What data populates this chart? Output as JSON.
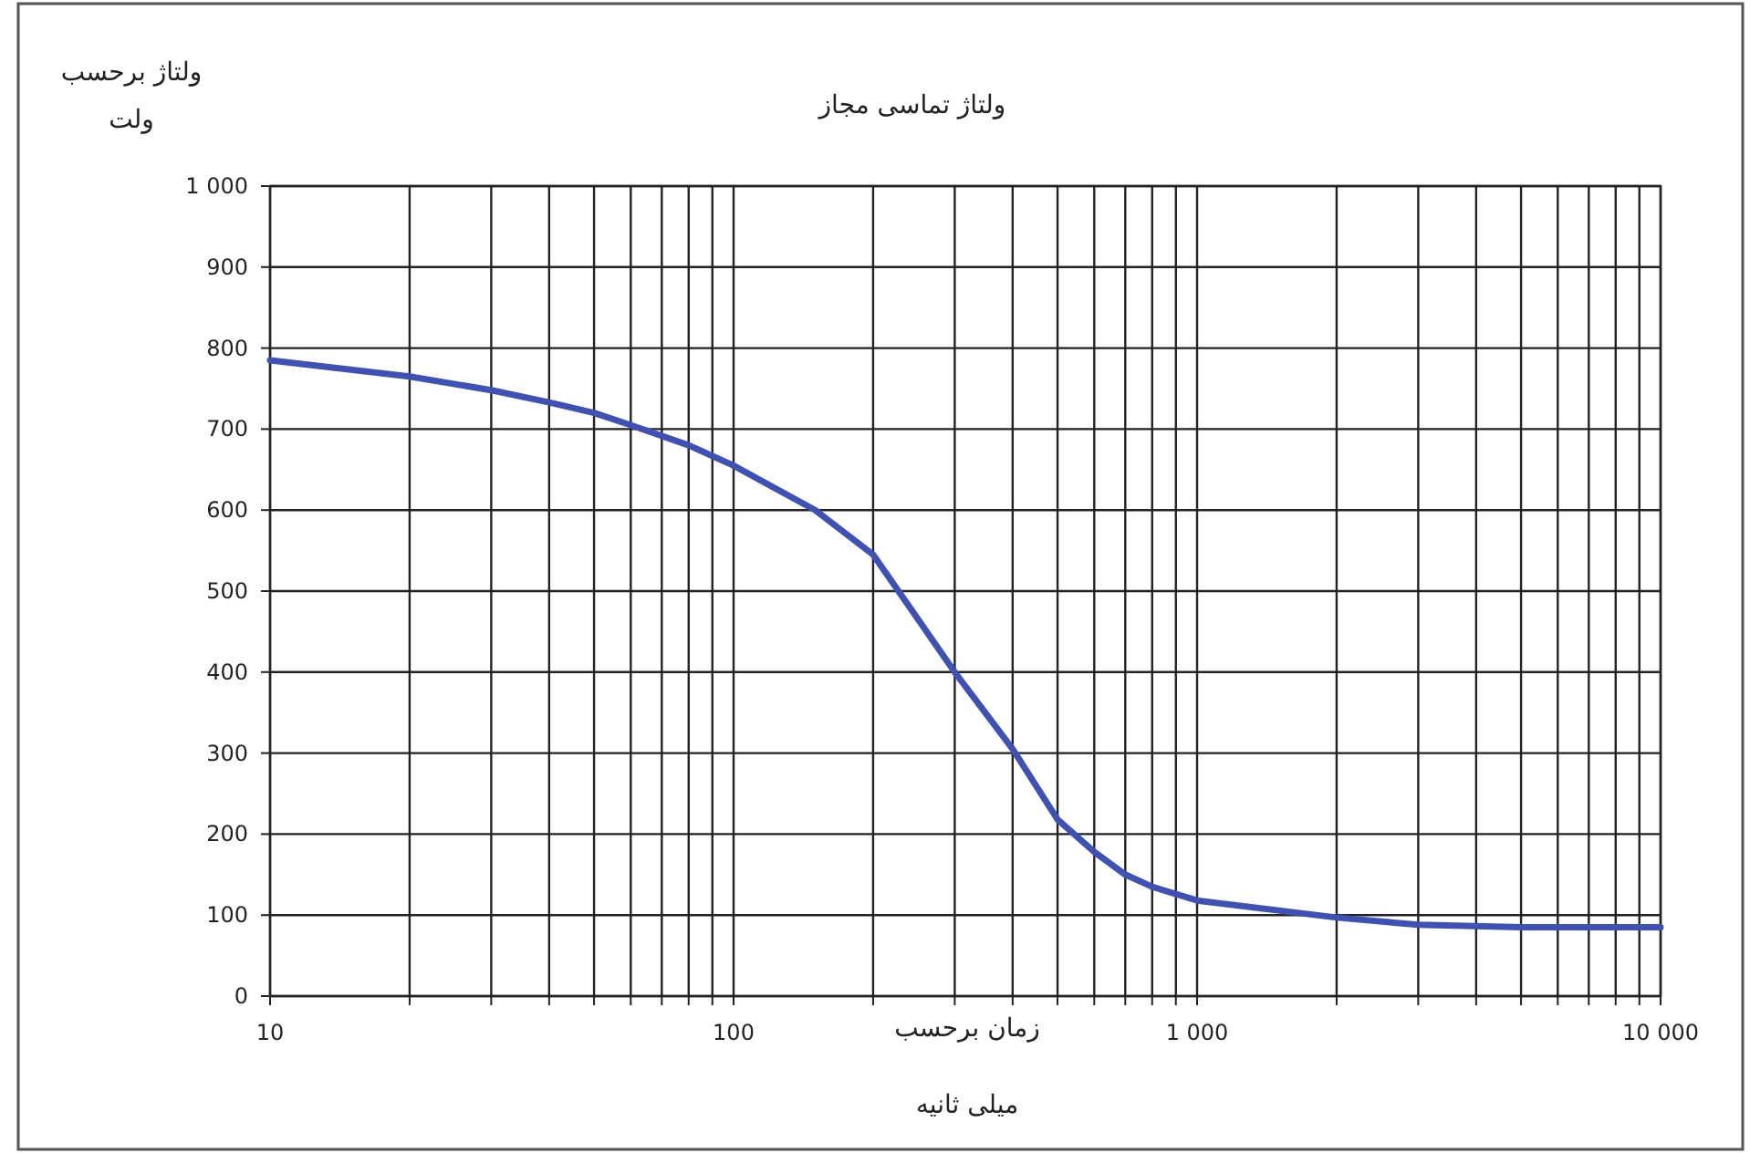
{
  "chart_data": {
    "type": "line",
    "title": "ولتاژ تماسی مجاز",
    "ylabel": "ولتاژ برحسب\nولت",
    "xlabel": "زمان برحسب\nمیلی ثانیه",
    "log": "x",
    "x": [
      10,
      20,
      30,
      40,
      50,
      60,
      80,
      100,
      150,
      200,
      300,
      400,
      500,
      600,
      700,
      800,
      1000,
      2000,
      3000,
      5000,
      10000
    ],
    "series": [
      {
        "color": "#3f51b5",
        "values": [
          785,
          765,
          748,
          733,
          720,
          705,
          680,
          655,
          600,
          545,
          400,
          305,
          218,
          178,
          150,
          135,
          118,
          97,
          88,
          85,
          85
        ]
      }
    ],
    "xlim": [
      10,
      10000
    ],
    "ylim": [
      0,
      1000
    ],
    "xticks": [
      10,
      {
        "value": 20,
        "label": null
      },
      {
        "value": 30,
        "label": null
      },
      {
        "value": 40,
        "label": null
      },
      {
        "value": 50,
        "label": null
      },
      {
        "value": 60,
        "label": null
      },
      {
        "value": 70,
        "label": null
      },
      {
        "value": 80,
        "label": null
      },
      {
        "value": 90,
        "label": null
      },
      100,
      {
        "value": 200,
        "label": null
      },
      {
        "value": 300,
        "label": null
      },
      {
        "value": 400,
        "label": null
      },
      {
        "value": 500,
        "label": null
      },
      {
        "value": 600,
        "label": null
      },
      {
        "value": 700,
        "label": null
      },
      {
        "value": 800,
        "label": null
      },
      {
        "value": 900,
        "label": null
      },
      {
        "value": 1000,
        "label": "1 000"
      },
      {
        "value": 2000,
        "label": null
      },
      {
        "value": 3000,
        "label": null
      },
      {
        "value": 4000,
        "label": null
      },
      {
        "value": 5000,
        "label": null
      },
      {
        "value": 6000,
        "label": null
      },
      {
        "value": 7000,
        "label": null
      },
      {
        "value": 8000,
        "label": null
      },
      {
        "value": 9000,
        "label": null
      },
      {
        "value": 10000,
        "label": "10 000"
      }
    ],
    "yticks": [
      0,
      100,
      200,
      300,
      400,
      500,
      600,
      700,
      800,
      900,
      {
        "value": 1000,
        "label": "1 000"
      }
    ],
    "grid": true,
    "marker": "none",
    "line_style": "solid"
  }
}
